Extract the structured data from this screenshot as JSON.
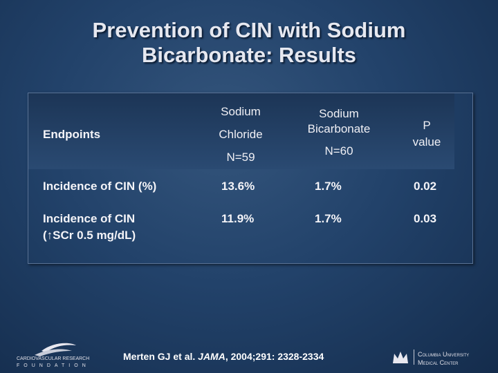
{
  "title": [
    "Prevention of CIN with Sodium",
    "Bicarbonate: Results"
  ],
  "table": {
    "header": [
      [
        "Endpoints"
      ],
      [
        "Sodium",
        "Chloride",
        "N=59"
      ],
      [
        "Sodium",
        "Bicarbonate",
        "N=60"
      ],
      [
        "P",
        "value"
      ]
    ],
    "rows": [
      [
        [
          "Incidence of CIN (%)"
        ],
        "13.6%",
        "1.7%",
        "0.02"
      ],
      [
        [
          "Incidence of CIN",
          "(↑SCr 0.5 mg/dL)"
        ],
        "11.9%",
        "1.7%",
        "0.03"
      ]
    ]
  },
  "citation": {
    "authors": "Merten GJ et al.",
    "journal": "JAMA",
    "details": ", 2004;291: 2328-2334"
  },
  "logos": {
    "left": [
      "CARDIOVASCULAR RESEARCH",
      "FOUNDATION"
    ],
    "right": [
      "Columbia University",
      "Medical Center"
    ]
  }
}
